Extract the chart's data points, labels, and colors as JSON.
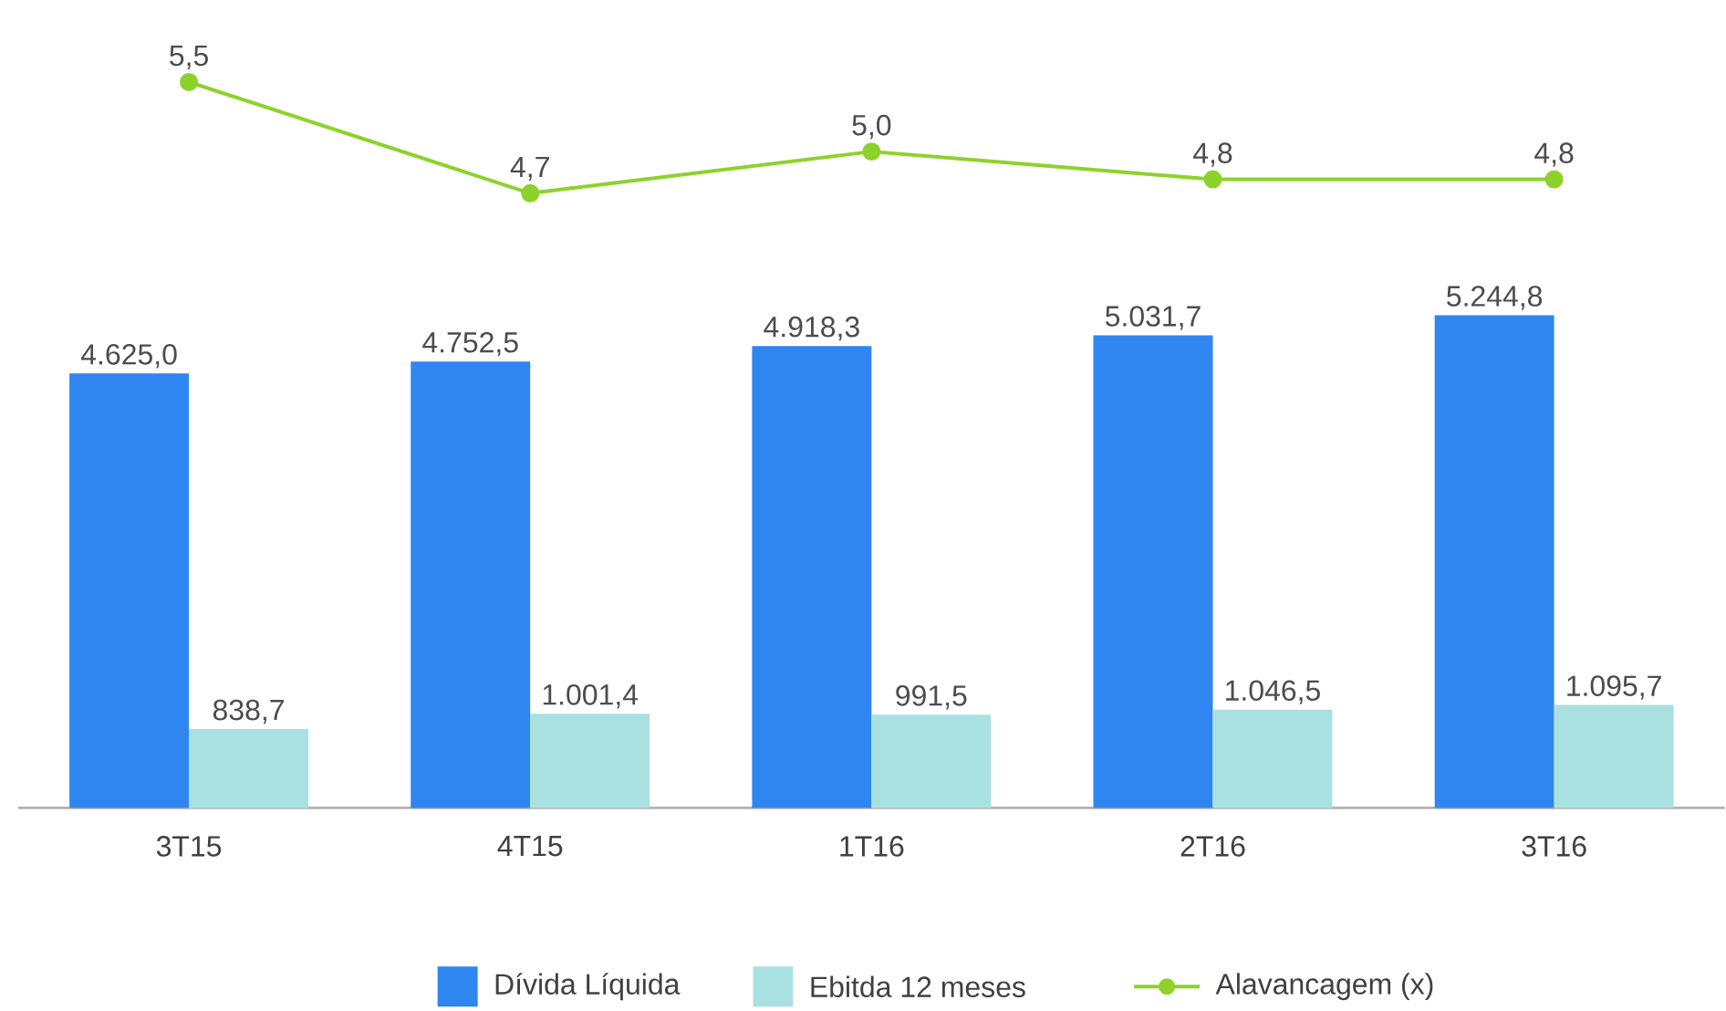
{
  "chart_data": [
    {
      "type": "bar",
      "categories": [
        "3T15",
        "4T15",
        "1T16",
        "2T16",
        "3T16"
      ],
      "series": [
        {
          "name": "Dívida Líquida",
          "color": "#2f86f0",
          "values": [
            4625.0,
            4752.5,
            4918.3,
            5031.7,
            5244.8
          ],
          "value_labels": [
            "4.625,0",
            "4.752,5",
            "4.918,3",
            "5.031,7",
            "5.244,8"
          ]
        },
        {
          "name": "Ebitda 12 meses",
          "color": "#a9e1e1",
          "values": [
            838.7,
            1001.4,
            991.5,
            1046.5,
            1095.7
          ],
          "value_labels": [
            "838,7",
            "1.001,4",
            "991,5",
            "1.046,5",
            "1.095,7"
          ]
        }
      ],
      "legend": "bottom"
    },
    {
      "type": "line",
      "categories": [
        null,
        null,
        null,
        null,
        null
      ],
      "marker": "circle",
      "series": [
        {
          "name": "Alavancagem (x)",
          "color": "#8dd22a",
          "values": [
            5.5,
            4.7,
            5.0,
            4.8,
            4.8
          ],
          "value_labels": [
            "5,5",
            "4,7",
            "5,0",
            "4,8",
            "4,8"
          ]
        }
      ],
      "legend": "bottom"
    }
  ]
}
